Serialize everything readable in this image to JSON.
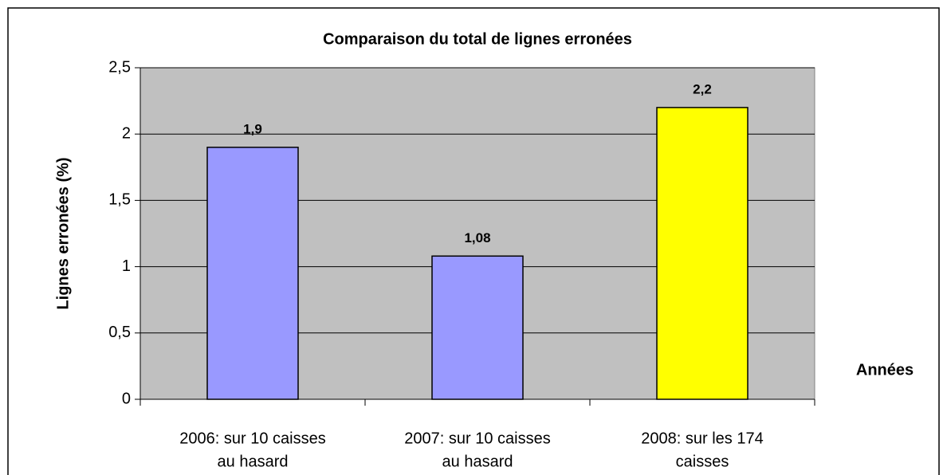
{
  "chart_data": {
    "type": "bar",
    "title": "Comparaison du total de lignes erronées",
    "y_label": "Lignes erronées (%)",
    "x_label": "Années",
    "categories": [
      [
        "2006: sur 10 caisses",
        "au hasard"
      ],
      [
        "2007: sur 10 caisses",
        "au hasard"
      ],
      [
        "2008: sur les 174",
        "caisses"
      ]
    ],
    "values": [
      1.9,
      1.08,
      2.2
    ],
    "value_labels": [
      "1,9",
      "1,08",
      "2,2"
    ],
    "colors": [
      "#9999ff",
      "#9999ff",
      "#ffff00"
    ],
    "ylim": [
      0,
      2.5
    ],
    "yticks": [
      0,
      {
        "value": 0.5,
        "label": "0,5"
      },
      1,
      {
        "value": 1.5,
        "label": "1,5"
      },
      2,
      {
        "value": 2.5,
        "label": "2,5"
      }
    ],
    "grid": true
  }
}
